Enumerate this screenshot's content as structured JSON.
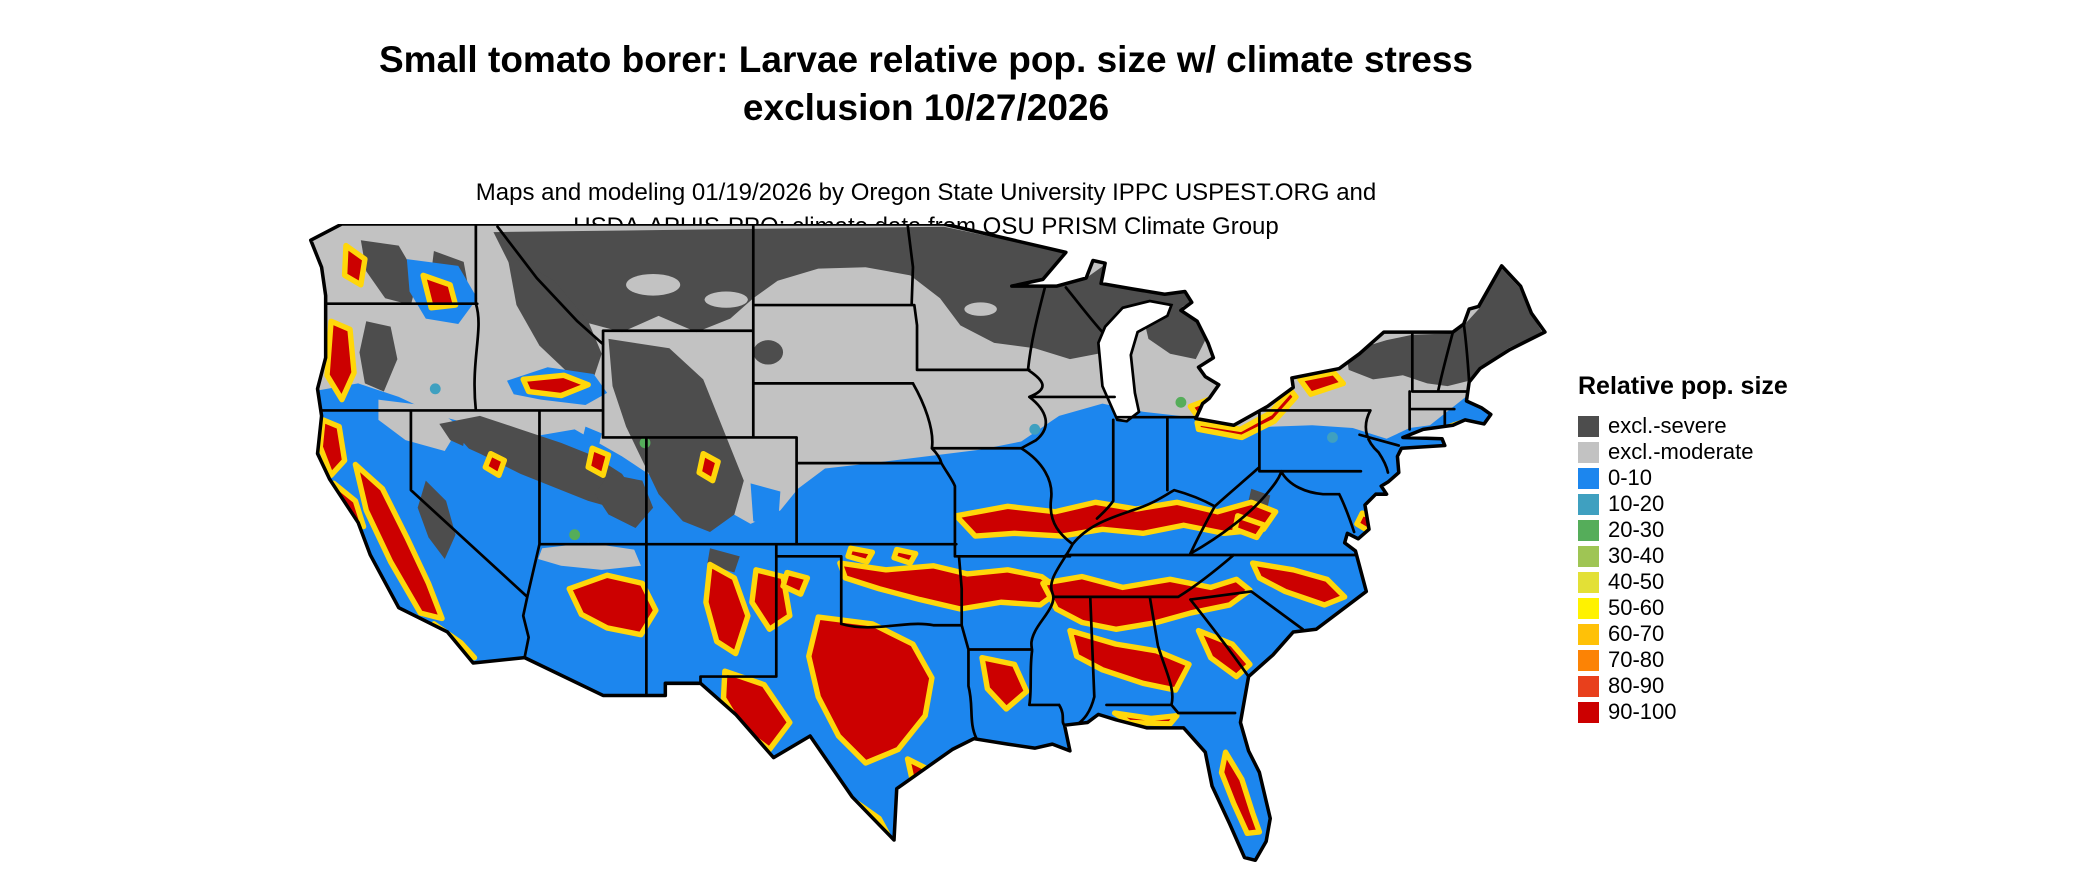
{
  "title": {
    "line1": "Small tomato borer: Larvae relative pop. size w/ climate stress",
    "line2": "exclusion 10/27/2026"
  },
  "subtitle": {
    "line1": "Maps and modeling 01/19/2026 by Oregon State University IPPC USPEST.ORG and",
    "line2": "USDA-APHIS-PPQ; climate data from OSU PRISM Climate Group"
  },
  "legend": {
    "title": "Relative pop. size",
    "items": [
      {
        "label": "excl.-severe",
        "color": "#4D4D4D"
      },
      {
        "label": "excl.-moderate",
        "color": "#C2C2C2"
      },
      {
        "label": "0-10",
        "color": "#1C86EE"
      },
      {
        "label": "10-20",
        "color": "#3FA0C0"
      },
      {
        "label": "20-30",
        "color": "#55AD5A"
      },
      {
        "label": "30-40",
        "color": "#9FC554"
      },
      {
        "label": "40-50",
        "color": "#E3E036"
      },
      {
        "label": "50-60",
        "color": "#FFF200"
      },
      {
        "label": "60-70",
        "color": "#FFC107"
      },
      {
        "label": "70-80",
        "color": "#FC8305"
      },
      {
        "label": "80-90",
        "color": "#E8401C"
      },
      {
        "label": "90-100",
        "color": "#CC0000"
      }
    ]
  }
}
